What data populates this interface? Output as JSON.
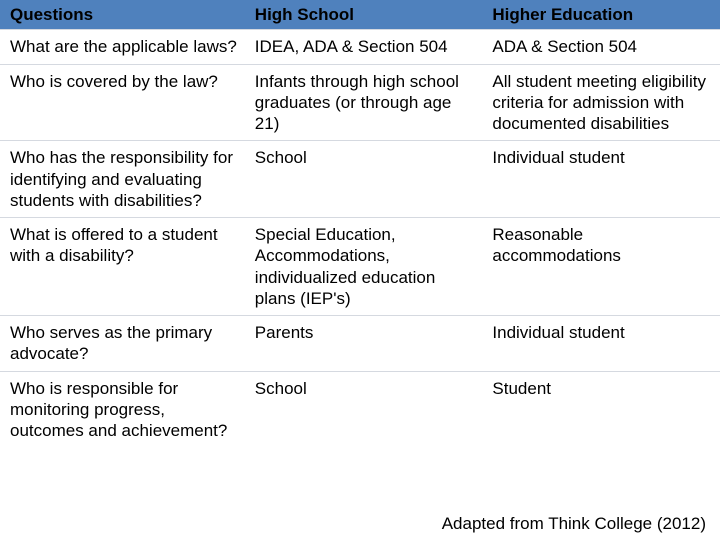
{
  "table": {
    "type": "table",
    "header_bg": "#4f81bd",
    "border_color": "#d5d9e0",
    "font_family": "Arial",
    "cell_fontsize": 17,
    "columns": [
      {
        "label": "Questions",
        "width_pct": 34
      },
      {
        "label": "High School",
        "width_pct": 33
      },
      {
        "label": "Higher Education",
        "width_pct": 33
      }
    ],
    "rows": [
      {
        "q": "What are the applicable laws?",
        "hs": "IDEA, ADA & Section 504",
        "he": "ADA & Section 504"
      },
      {
        "q": "Who is covered by the law?",
        "hs": "Infants through high school graduates (or through age 21)",
        "he": "All student meeting eligibility criteria for admission with documented disabilities"
      },
      {
        "q": "Who has the responsibility for identifying and evaluating students with disabilities?",
        "hs": "School",
        "he": "Individual student"
      },
      {
        "q": "What is offered to a student with a disability?",
        "hs": "Special Education, Accommodations, individualized education plans (IEP's)",
        "he": "Reasonable accommodations"
      },
      {
        "q": "Who serves as the primary advocate?",
        "hs": "Parents",
        "he": "Individual student"
      },
      {
        "q": "Who is responsible for monitoring progress, outcomes and achievement?",
        "hs": "School",
        "he": "Student"
      }
    ]
  },
  "attribution": "Adapted from Think College (2012)"
}
